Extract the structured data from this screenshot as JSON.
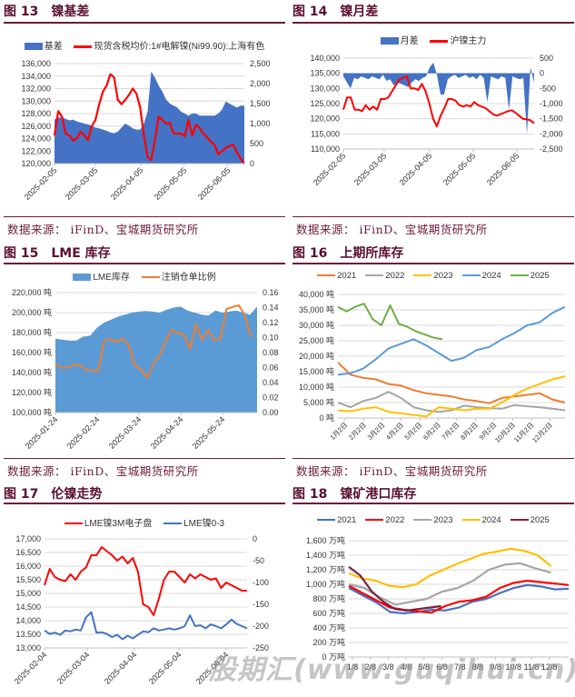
{
  "source_text": "数据来源： iFinD、宝城期货研究所",
  "watermark": "股期汇(www.guqihui.cn)",
  "figures": [
    {
      "num": "图 13",
      "title": "镍基差"
    },
    {
      "num": "图 14",
      "title": "镍月差"
    },
    {
      "num": "图 15",
      "title": "LME 库存"
    },
    {
      "num": "图 16",
      "title": "上期所库存"
    },
    {
      "num": "图 17",
      "title": "伦镍走势"
    },
    {
      "num": "图 18",
      "title": "镍矿港口库存"
    }
  ],
  "chart_data": [
    {
      "type": "area+line",
      "title": "镍基差",
      "x_ticks": [
        "2025-02-05",
        "2025-03-05",
        "2025-04-05",
        "2025-05-05",
        "2025-06-05"
      ],
      "y_left_ticks": [
        "120,000",
        "122,000",
        "124,000",
        "126,000",
        "128,000",
        "130,000",
        "132,000",
        "134,000",
        "136,000"
      ],
      "y_right_ticks": [
        "0",
        "500",
        "1,000",
        "1,500",
        "2,000",
        "2,500"
      ],
      "ylim_left": [
        120000,
        136000
      ],
      "ylim_right": [
        0,
        2500
      ],
      "series": [
        {
          "name": "基差",
          "axis": "right",
          "kind": "area",
          "color": "#4472c4",
          "values": [
            1100,
            1150,
            1150,
            1120,
            1080,
            1100,
            1050,
            1030,
            1000,
            980,
            950,
            900,
            880,
            850,
            820,
            780,
            760,
            800,
            900,
            1000,
            950,
            880,
            850,
            850,
            1000,
            1300,
            2300,
            2150,
            1950,
            1800,
            1600,
            1500,
            1450,
            1400,
            1300,
            1250,
            1200,
            1250,
            1250,
            1200,
            1200,
            1200,
            1200,
            1200,
            1250,
            1350,
            1550,
            1500,
            1450,
            1400,
            1450,
            1450
          ]
        },
        {
          "name": "现货含税均价:1#电解镍(Ni99.90):上海有色",
          "axis": "left",
          "kind": "line",
          "color": "#ff0000",
          "values": [
            124500,
            128400,
            127500,
            124800,
            124500,
            123700,
            124000,
            125100,
            124500,
            123800,
            126000,
            127000,
            129500,
            131500,
            132500,
            134300,
            133800,
            130200,
            129500,
            130200,
            131000,
            132000,
            131200,
            129000,
            124500,
            121000,
            120600,
            123800,
            127500,
            127000,
            126400,
            126500,
            124800,
            124800,
            124800,
            124400,
            127000,
            124500,
            126200,
            125700,
            124800,
            124200,
            123500,
            123000,
            121500,
            122000,
            122500,
            122800,
            123000,
            121800,
            120800,
            120000
          ]
        }
      ]
    },
    {
      "type": "area+line",
      "title": "镍月差",
      "x_ticks": [
        "2025-02-05",
        "2025-03-05",
        "2025-04-05",
        "2025-05-05",
        "2025-06-05"
      ],
      "y_left_ticks": [
        "110,000",
        "115,000",
        "120,000",
        "125,000",
        "130,000",
        "135,000",
        "140,000"
      ],
      "y_right_ticks": [
        "-2,500",
        "-2,000",
        "-1,500",
        "-1,000",
        "-500",
        "0",
        "500"
      ],
      "ylim_left": [
        110000,
        140000
      ],
      "ylim_right": [
        -2500,
        500
      ],
      "series": [
        {
          "name": "月差",
          "axis": "right",
          "kind": "area",
          "color": "#4472c4",
          "values": [
            -100,
            -300,
            -500,
            -150,
            -200,
            -100,
            -150,
            -200,
            -100,
            -150,
            -200,
            -50,
            -250,
            -200,
            -400,
            -300,
            -350,
            -400,
            -450,
            -300,
            -200,
            -250,
            -150,
            -100,
            200,
            350,
            -50,
            -700,
            -700,
            -200,
            -100,
            -50,
            -150,
            -100,
            -50,
            -150,
            -100,
            -200,
            -50,
            -150,
            -950,
            -100,
            -150,
            -200,
            -100,
            -150,
            -1200,
            -100,
            -150,
            -200,
            -150,
            -2000,
            200,
            -300
          ]
        },
        {
          "name": "沪镍主力",
          "axis": "left",
          "kind": "line",
          "color": "#ff0000",
          "values": [
            123000,
            127000,
            127000,
            123000,
            123000,
            122500,
            124500,
            123000,
            124000,
            123000,
            126500,
            126500,
            127000,
            129000,
            131000,
            133000,
            133500,
            134000,
            130000,
            130000,
            129500,
            131500,
            129000,
            125000,
            120000,
            117500,
            121000,
            123500,
            126500,
            126500,
            126000,
            124500,
            124000,
            124500,
            124000,
            125500,
            124500,
            124000,
            123500,
            122500,
            121500,
            121000,
            121500,
            122000,
            122500,
            122800,
            122000,
            121000,
            120000,
            119800,
            119500,
            118500
          ]
        }
      ]
    },
    {
      "type": "area+line",
      "title": "LME 库存",
      "x_ticks": [
        "2025-01-24",
        "2025-02-24",
        "2025-03-24",
        "2025-04-24",
        "2025-05-24"
      ],
      "y_left_ticks": [
        "100,000 吨",
        "120,000 吨",
        "140,000 吨",
        "160,000 吨",
        "180,000 吨",
        "200,000 吨",
        "220,000 吨"
      ],
      "y_right_ticks": [
        "0.00",
        "0.02",
        "0.04",
        "0.06",
        "0.08",
        "0.10",
        "0.12",
        "0.14",
        "0.16"
      ],
      "ylim_left": [
        100000,
        220000
      ],
      "ylim_right": [
        0,
        0.16
      ],
      "series": [
        {
          "name": "LME库存",
          "axis": "left",
          "kind": "area",
          "color": "#5b9bd5",
          "values": [
            174000,
            173000,
            172000,
            172000,
            176000,
            177000,
            185000,
            190000,
            193000,
            196000,
            198000,
            200000,
            201000,
            201500,
            201000,
            200000,
            203000,
            205000,
            206000,
            202000,
            200000,
            198000,
            197000,
            202000,
            200000,
            201000,
            202000,
            200000,
            198000,
            206000
          ]
        },
        {
          "name": "注销仓单比例",
          "axis": "right",
          "kind": "line",
          "color": "#ed7d31",
          "values": [
            0.064,
            0.06,
            0.06,
            0.064,
            0.063,
            0.057,
            0.056,
            0.055,
            0.096,
            0.098,
            0.094,
            0.099,
            0.09,
            0.062,
            0.058,
            0.046,
            0.065,
            0.075,
            0.095,
            0.11,
            0.106,
            0.104,
            0.085,
            0.118,
            0.097,
            0.11,
            0.097,
            0.098,
            0.138,
            0.141,
            0.143,
            0.13,
            0.101
          ]
        }
      ]
    },
    {
      "type": "line",
      "title": "上期所库存",
      "x_ticks": [
        "1月2日",
        "2月2日",
        "3月2日",
        "4月2日",
        "5月2日",
        "6月2日",
        "7月2日",
        "8月2日",
        "9月2日",
        "10月2日",
        "11月2日",
        "12月2日"
      ],
      "y_ticks": [
        "0 吨",
        "5,000 吨",
        "10,000 吨",
        "15,000 吨",
        "20,000 吨",
        "25,000 吨",
        "30,000 吨",
        "35,000 吨",
        "40,000 吨"
      ],
      "ylim": [
        0,
        40000
      ],
      "series": [
        {
          "name": "2021",
          "color": "#ed7d31",
          "values": [
            18000,
            14000,
            13000,
            12500,
            11000,
            10500,
            9000,
            8000,
            7500,
            7000,
            6000,
            5500,
            4800,
            6500,
            7000,
            7500,
            8000,
            6000,
            5000
          ]
        },
        {
          "name": "2022",
          "color": "#a5a5a5",
          "values": [
            5000,
            3500,
            5500,
            6500,
            8500,
            6500,
            3500,
            2500,
            2000,
            2500,
            4000,
            3500,
            3200,
            3000,
            4200,
            3800,
            3500,
            3000,
            2500
          ]
        },
        {
          "name": "2023",
          "color": "#ffc000",
          "values": [
            2500,
            2200,
            3000,
            3500,
            2000,
            1500,
            1000,
            500,
            3500,
            3000,
            2500,
            3000,
            3000,
            5000,
            7500,
            9500,
            11000,
            12500,
            13500
          ]
        },
        {
          "name": "2024",
          "color": "#5b9bd5",
          "values": [
            14000,
            14500,
            16000,
            19000,
            22500,
            24000,
            25500,
            23500,
            21000,
            18500,
            19500,
            22000,
            23000,
            25500,
            27500,
            30000,
            31000,
            34000,
            36000
          ]
        },
        {
          "name": "2025",
          "color": "#70ad47",
          "values": [
            36000,
            34500,
            36000,
            37000,
            32000,
            30000,
            36500,
            30500,
            29500,
            28000,
            27000,
            26000,
            25500
          ]
        }
      ]
    },
    {
      "type": "line",
      "title": "伦镍走势",
      "x_ticks": [
        "2025-02-04",
        "2025-03-04",
        "2025-04-04",
        "2025-05-04",
        "2025-06-04"
      ],
      "y_left_ticks": [
        "13,000",
        "13,500",
        "14,000",
        "14,500",
        "15,000",
        "15,500",
        "16,000",
        "16,500",
        "17,000"
      ],
      "y_right_ticks": [
        "-250",
        "-200",
        "-150",
        "-100",
        "-50",
        "0"
      ],
      "ylim_left": [
        13000,
        17000
      ],
      "ylim_right": [
        -250,
        0
      ],
      "series": [
        {
          "name": "LME镍3M电子盘",
          "axis": "left",
          "kind": "line",
          "color": "#ff0000",
          "values": [
            15300,
            15900,
            15600,
            15500,
            15450,
            15700,
            15500,
            15800,
            15950,
            16400,
            16400,
            16700,
            16550,
            16400,
            16200,
            16350,
            16100,
            16300,
            15800,
            14600,
            14500,
            14200,
            14800,
            15500,
            15800,
            15800,
            15600,
            15400,
            15700,
            15550,
            15700,
            15600,
            15500,
            15550,
            15200,
            15400,
            15300,
            15200,
            15100,
            15100
          ]
        },
        {
          "name": "LME镍0-3",
          "axis": "right",
          "kind": "line",
          "color": "#4472c4",
          "values": [
            -210,
            -218,
            -215,
            -220,
            -210,
            -212,
            -208,
            -210,
            -180,
            -168,
            -215,
            -214,
            -218,
            -225,
            -220,
            -230,
            -222,
            -228,
            -220,
            -212,
            -214,
            -205,
            -210,
            -208,
            -205,
            -208,
            -205,
            -200,
            -175,
            -200,
            -198,
            -205,
            -196,
            -200,
            -205,
            -196,
            -185,
            -195,
            -200,
            -205
          ]
        }
      ]
    },
    {
      "type": "line",
      "title": "镍矿港口库存",
      "x_ticks": [
        "1/8",
        "2/8",
        "3/8",
        "4/8",
        "5/8",
        "6/8",
        "7/8",
        "8/8",
        "9/8",
        "10/8",
        "11/8",
        "12/8"
      ],
      "y_ticks": [
        "0 万吨",
        "200 万吨",
        "400 万吨",
        "600 万吨",
        "800 万吨",
        "1,000 万吨",
        "1,200 万吨",
        "1,400 万吨",
        "1,600 万吨"
      ],
      "ylim": [
        0,
        1600
      ],
      "series": [
        {
          "name": "2021",
          "color": "#4472c4",
          "values": [
            950,
            850,
            750,
            620,
            600,
            620,
            650,
            640,
            680,
            760,
            800,
            880,
            950,
            990,
            970,
            930,
            940
          ]
        },
        {
          "name": "2022",
          "color": "#ff0000",
          "values": [
            980,
            880,
            780,
            680,
            650,
            630,
            610,
            700,
            760,
            780,
            830,
            950,
            1020,
            1050,
            1030,
            1010,
            990
          ]
        },
        {
          "name": "2023",
          "color": "#a5a5a5",
          "values": [
            1000,
            950,
            820,
            720,
            760,
            800,
            900,
            950,
            1050,
            1200,
            1270,
            1290,
            1220,
            1160
          ]
        },
        {
          "name": "2024",
          "color": "#ffc000",
          "values": [
            1150,
            1080,
            1050,
            980,
            960,
            1000,
            1120,
            1200,
            1280,
            1350,
            1420,
            1450,
            1490,
            1460,
            1400,
            1250
          ]
        },
        {
          "name": "2025",
          "color": "#7b2041",
          "values": [
            1240,
            1120,
            900,
            760,
            660,
            640,
            660,
            680,
            700
          ]
        }
      ]
    }
  ]
}
